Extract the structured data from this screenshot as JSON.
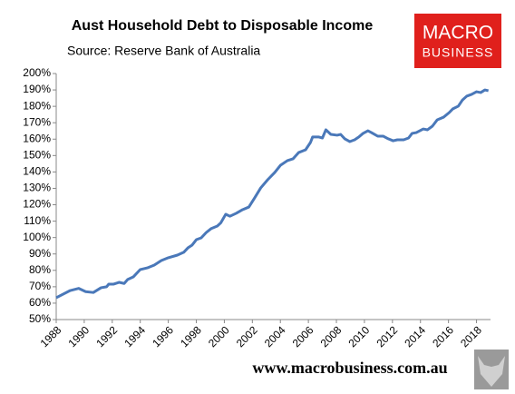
{
  "chart_data": {
    "type": "line",
    "title": "Aust Household Debt to Disposable Income",
    "subtitle": "Source: Reserve Bank of Australia",
    "brand": [
      "MACRO",
      "BUSINESS"
    ],
    "footer": "www.macrobusiness.com.au",
    "xlim": [
      1988,
      2019
    ],
    "xticks": [
      1988,
      1990,
      1992,
      1994,
      1996,
      1998,
      2000,
      2002,
      2004,
      2006,
      2008,
      2010,
      2012,
      2014,
      2016,
      2018
    ],
    "ylim": [
      50,
      200
    ],
    "yticks": [
      {
        "value": 50,
        "label": "50%"
      },
      {
        "value": 60,
        "label": "60%"
      },
      {
        "value": 70,
        "label": "70%"
      },
      {
        "value": 80,
        "label": "80%"
      },
      {
        "value": 90,
        "label": "90%"
      },
      {
        "value": 100,
        "label": "100%"
      },
      {
        "value": 110,
        "label": "110%"
      },
      {
        "value": 120,
        "label": "120%"
      },
      {
        "value": 130,
        "label": "130%"
      },
      {
        "value": 140,
        "label": "140%"
      },
      {
        "value": 150,
        "label": "150%"
      },
      {
        "value": 160,
        "label": "160%"
      },
      {
        "value": 170,
        "label": "170%"
      },
      {
        "value": 180,
        "label": "180%"
      },
      {
        "value": 190,
        "label": "190%"
      },
      {
        "value": 200,
        "label": "200%"
      }
    ],
    "grid": false,
    "x": [
      1988.0,
      1989.0,
      1989.6,
      1990.1,
      1990.65,
      1991.2,
      1991.6,
      1991.75,
      1992.1,
      1992.5,
      1992.85,
      1993.1,
      1993.5,
      1994.0,
      1994.5,
      1995.0,
      1995.5,
      1996.0,
      1996.65,
      1997.1,
      1997.4,
      1997.7,
      1998.0,
      1998.35,
      1998.7,
      1999.05,
      1999.5,
      1999.75,
      2000.1,
      2000.4,
      2000.85,
      2001.3,
      2001.75,
      2002.15,
      2002.6,
      2003.1,
      2003.6,
      2004.0,
      2004.5,
      2004.9,
      2005.3,
      2005.8,
      2006.15,
      2006.3,
      2006.75,
      2007.0,
      2007.25,
      2007.6,
      2008.05,
      2008.3,
      2008.6,
      2008.95,
      2009.3,
      2009.6,
      2009.9,
      2010.25,
      2010.5,
      2010.95,
      2011.35,
      2011.7,
      2012.05,
      2012.35,
      2012.8,
      2013.15,
      2013.4,
      2013.7,
      2014.2,
      2014.5,
      2014.85,
      2015.2,
      2015.65,
      2016.05,
      2016.3,
      2016.7,
      2017.0,
      2017.3,
      2017.65,
      2018.0,
      2018.3,
      2018.6,
      2018.85
    ],
    "series": [
      {
        "name": "Household debt to disposable income",
        "color": "#4a78b9",
        "values": [
          63.3,
          67.7,
          69,
          67,
          66.5,
          69.4,
          70,
          71.6,
          71.6,
          72.7,
          72,
          74.4,
          76,
          80.5,
          81.5,
          83.2,
          86,
          87.7,
          89.3,
          91,
          93.7,
          95.4,
          98.7,
          99.8,
          103,
          105.4,
          107,
          109,
          114.2,
          113,
          114.8,
          117,
          118.6,
          124,
          130.3,
          135.3,
          139.7,
          144,
          146.9,
          148,
          151.8,
          153.5,
          158,
          161.3,
          161.3,
          160.7,
          165.7,
          162.9,
          162.4,
          162.9,
          160.2,
          158.5,
          159.6,
          161.3,
          163.5,
          165.1,
          164,
          161.8,
          161.8,
          160.2,
          159,
          159.6,
          159.6,
          160.7,
          163.5,
          164,
          166.2,
          165.7,
          167.9,
          171.8,
          173.4,
          176.2,
          178.4,
          180.1,
          183.9,
          186.2,
          187.3,
          188.9,
          188.4,
          190,
          189.5
        ]
      }
    ]
  }
}
